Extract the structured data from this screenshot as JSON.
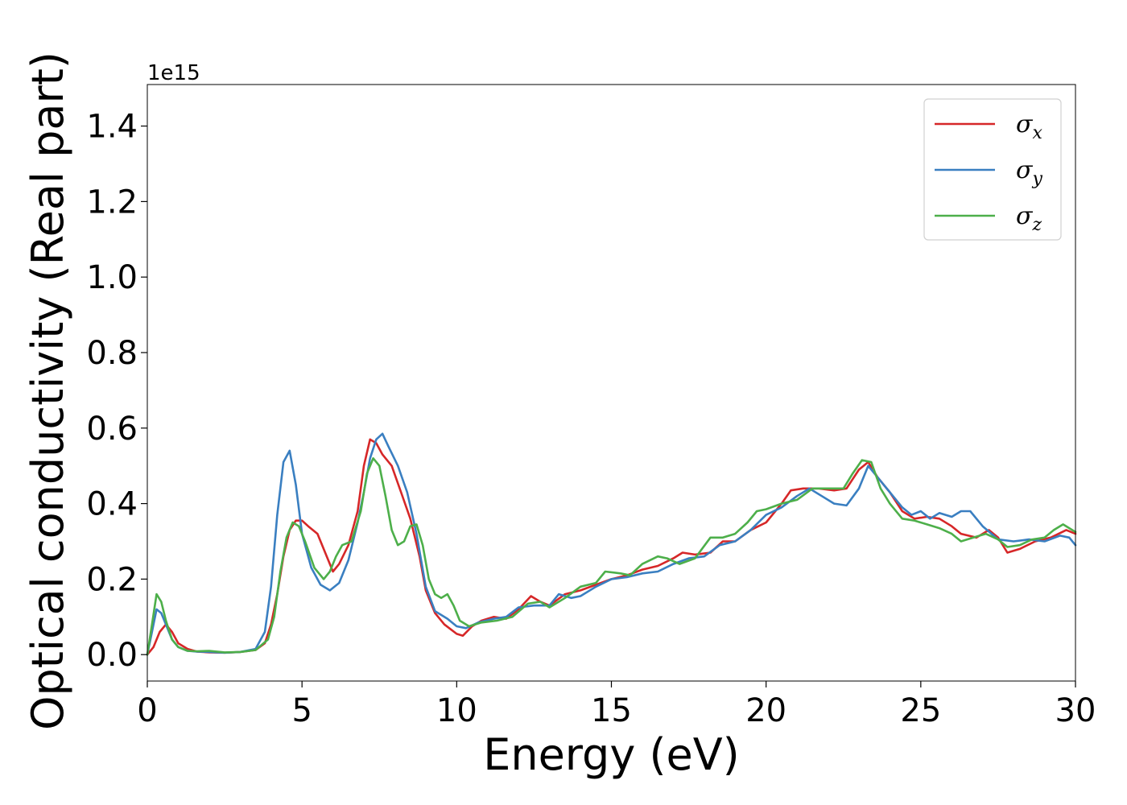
{
  "chart_data": {
    "type": "line",
    "xlabel": "Energy (eV)",
    "ylabel": "Optical conductivity (Real part)",
    "y_offset_label": "1e15",
    "xlim": [
      0,
      30
    ],
    "ylim": [
      -0.07,
      1.51
    ],
    "x_ticks": [
      0,
      5,
      10,
      15,
      20,
      25,
      30
    ],
    "x_tick_labels": [
      "0",
      "5",
      "10",
      "15",
      "20",
      "25",
      "30"
    ],
    "y_ticks": [
      0.0,
      0.2,
      0.4,
      0.6,
      0.8,
      1.0,
      1.2,
      1.4
    ],
    "y_tick_labels": [
      "0.0",
      "0.2",
      "0.4",
      "0.6",
      "0.8",
      "1.0",
      "1.2",
      "1.4"
    ],
    "grid": false,
    "legend_position": "top-right",
    "series": [
      {
        "name": "σx",
        "sub": "x",
        "color": "#d62728",
        "points": [
          [
            0,
            0.0
          ],
          [
            0.2,
            0.02
          ],
          [
            0.4,
            0.06
          ],
          [
            0.6,
            0.08
          ],
          [
            0.8,
            0.06
          ],
          [
            1.0,
            0.03
          ],
          [
            1.3,
            0.015
          ],
          [
            1.6,
            0.008
          ],
          [
            2.0,
            0.006
          ],
          [
            2.5,
            0.005
          ],
          [
            3.0,
            0.007
          ],
          [
            3.5,
            0.012
          ],
          [
            3.8,
            0.03
          ],
          [
            4.0,
            0.08
          ],
          [
            4.2,
            0.16
          ],
          [
            4.4,
            0.26
          ],
          [
            4.6,
            0.33
          ],
          [
            4.8,
            0.355
          ],
          [
            5.0,
            0.355
          ],
          [
            5.2,
            0.34
          ],
          [
            5.5,
            0.32
          ],
          [
            5.8,
            0.26
          ],
          [
            6.0,
            0.22
          ],
          [
            6.2,
            0.24
          ],
          [
            6.5,
            0.29
          ],
          [
            6.8,
            0.38
          ],
          [
            7.0,
            0.5
          ],
          [
            7.2,
            0.57
          ],
          [
            7.4,
            0.56
          ],
          [
            7.6,
            0.53
          ],
          [
            7.9,
            0.5
          ],
          [
            8.2,
            0.43
          ],
          [
            8.5,
            0.36
          ],
          [
            8.8,
            0.26
          ],
          [
            9.0,
            0.17
          ],
          [
            9.3,
            0.11
          ],
          [
            9.6,
            0.08
          ],
          [
            10.0,
            0.055
          ],
          [
            10.2,
            0.05
          ],
          [
            10.5,
            0.075
          ],
          [
            10.8,
            0.09
          ],
          [
            11.2,
            0.1
          ],
          [
            11.6,
            0.095
          ],
          [
            12.0,
            0.12
          ],
          [
            12.4,
            0.155
          ],
          [
            12.7,
            0.14
          ],
          [
            13.0,
            0.13
          ],
          [
            13.5,
            0.16
          ],
          [
            14.0,
            0.17
          ],
          [
            14.5,
            0.185
          ],
          [
            15.0,
            0.2
          ],
          [
            15.5,
            0.21
          ],
          [
            16.0,
            0.225
          ],
          [
            16.5,
            0.235
          ],
          [
            17.0,
            0.255
          ],
          [
            17.3,
            0.27
          ],
          [
            17.7,
            0.265
          ],
          [
            18.2,
            0.27
          ],
          [
            18.6,
            0.3
          ],
          [
            19.0,
            0.3
          ],
          [
            19.5,
            0.33
          ],
          [
            20.0,
            0.35
          ],
          [
            20.5,
            0.4
          ],
          [
            20.8,
            0.435
          ],
          [
            21.2,
            0.44
          ],
          [
            21.7,
            0.44
          ],
          [
            22.2,
            0.435
          ],
          [
            22.6,
            0.44
          ],
          [
            23.0,
            0.49
          ],
          [
            23.3,
            0.51
          ],
          [
            23.6,
            0.47
          ],
          [
            24.0,
            0.43
          ],
          [
            24.4,
            0.38
          ],
          [
            24.8,
            0.36
          ],
          [
            25.2,
            0.365
          ],
          [
            25.6,
            0.36
          ],
          [
            26.0,
            0.34
          ],
          [
            26.3,
            0.32
          ],
          [
            26.8,
            0.31
          ],
          [
            27.2,
            0.33
          ],
          [
            27.5,
            0.31
          ],
          [
            27.8,
            0.27
          ],
          [
            28.2,
            0.28
          ],
          [
            28.7,
            0.3
          ],
          [
            29.2,
            0.31
          ],
          [
            29.7,
            0.33
          ],
          [
            30,
            0.32
          ]
        ]
      },
      {
        "name": "σy",
        "sub": "y",
        "color": "#3a7fc1",
        "points": [
          [
            0,
            0.0
          ],
          [
            0.15,
            0.06
          ],
          [
            0.3,
            0.12
          ],
          [
            0.45,
            0.11
          ],
          [
            0.6,
            0.08
          ],
          [
            0.8,
            0.04
          ],
          [
            1.0,
            0.02
          ],
          [
            1.3,
            0.01
          ],
          [
            1.6,
            0.008
          ],
          [
            2.0,
            0.007
          ],
          [
            2.5,
            0.005
          ],
          [
            3.0,
            0.007
          ],
          [
            3.5,
            0.015
          ],
          [
            3.8,
            0.06
          ],
          [
            4.0,
            0.18
          ],
          [
            4.2,
            0.37
          ],
          [
            4.4,
            0.51
          ],
          [
            4.6,
            0.54
          ],
          [
            4.8,
            0.45
          ],
          [
            5.0,
            0.32
          ],
          [
            5.3,
            0.23
          ],
          [
            5.6,
            0.185
          ],
          [
            5.9,
            0.17
          ],
          [
            6.2,
            0.19
          ],
          [
            6.5,
            0.25
          ],
          [
            6.8,
            0.35
          ],
          [
            7.0,
            0.43
          ],
          [
            7.2,
            0.52
          ],
          [
            7.4,
            0.57
          ],
          [
            7.6,
            0.585
          ],
          [
            7.8,
            0.55
          ],
          [
            8.1,
            0.5
          ],
          [
            8.4,
            0.43
          ],
          [
            8.7,
            0.32
          ],
          [
            9.0,
            0.18
          ],
          [
            9.3,
            0.115
          ],
          [
            9.7,
            0.095
          ],
          [
            10.0,
            0.075
          ],
          [
            10.3,
            0.07
          ],
          [
            10.7,
            0.085
          ],
          [
            11.2,
            0.095
          ],
          [
            11.6,
            0.1
          ],
          [
            12.0,
            0.125
          ],
          [
            12.5,
            0.13
          ],
          [
            13.0,
            0.13
          ],
          [
            13.3,
            0.16
          ],
          [
            13.7,
            0.15
          ],
          [
            14.0,
            0.155
          ],
          [
            14.5,
            0.18
          ],
          [
            15.0,
            0.2
          ],
          [
            15.5,
            0.205
          ],
          [
            16.0,
            0.215
          ],
          [
            16.5,
            0.22
          ],
          [
            17.0,
            0.24
          ],
          [
            17.5,
            0.255
          ],
          [
            18.0,
            0.26
          ],
          [
            18.5,
            0.29
          ],
          [
            19.0,
            0.3
          ],
          [
            19.5,
            0.33
          ],
          [
            20.0,
            0.37
          ],
          [
            20.5,
            0.39
          ],
          [
            21.0,
            0.42
          ],
          [
            21.4,
            0.44
          ],
          [
            21.8,
            0.42
          ],
          [
            22.2,
            0.4
          ],
          [
            22.6,
            0.395
          ],
          [
            23.0,
            0.44
          ],
          [
            23.3,
            0.5
          ],
          [
            23.6,
            0.47
          ],
          [
            24.0,
            0.43
          ],
          [
            24.4,
            0.39
          ],
          [
            24.7,
            0.37
          ],
          [
            25.0,
            0.38
          ],
          [
            25.3,
            0.36
          ],
          [
            25.6,
            0.375
          ],
          [
            26.0,
            0.365
          ],
          [
            26.3,
            0.38
          ],
          [
            26.6,
            0.38
          ],
          [
            27.0,
            0.34
          ],
          [
            27.5,
            0.305
          ],
          [
            28.0,
            0.3
          ],
          [
            28.5,
            0.305
          ],
          [
            29.0,
            0.3
          ],
          [
            29.5,
            0.315
          ],
          [
            29.8,
            0.31
          ],
          [
            30,
            0.29
          ]
        ]
      },
      {
        "name": "σz",
        "sub": "z",
        "color": "#4daf4a",
        "points": [
          [
            0,
            0.0
          ],
          [
            0.15,
            0.08
          ],
          [
            0.3,
            0.16
          ],
          [
            0.45,
            0.14
          ],
          [
            0.6,
            0.09
          ],
          [
            0.8,
            0.04
          ],
          [
            1.0,
            0.02
          ],
          [
            1.3,
            0.01
          ],
          [
            1.6,
            0.009
          ],
          [
            2.0,
            0.01
          ],
          [
            2.5,
            0.006
          ],
          [
            3.0,
            0.007
          ],
          [
            3.5,
            0.012
          ],
          [
            3.9,
            0.04
          ],
          [
            4.1,
            0.1
          ],
          [
            4.3,
            0.22
          ],
          [
            4.5,
            0.31
          ],
          [
            4.7,
            0.35
          ],
          [
            4.9,
            0.34
          ],
          [
            5.1,
            0.3
          ],
          [
            5.4,
            0.23
          ],
          [
            5.7,
            0.2
          ],
          [
            5.9,
            0.22
          ],
          [
            6.1,
            0.26
          ],
          [
            6.3,
            0.29
          ],
          [
            6.6,
            0.3
          ],
          [
            6.9,
            0.38
          ],
          [
            7.1,
            0.48
          ],
          [
            7.3,
            0.52
          ],
          [
            7.5,
            0.5
          ],
          [
            7.7,
            0.42
          ],
          [
            7.9,
            0.33
          ],
          [
            8.1,
            0.29
          ],
          [
            8.3,
            0.3
          ],
          [
            8.5,
            0.34
          ],
          [
            8.7,
            0.345
          ],
          [
            8.9,
            0.29
          ],
          [
            9.1,
            0.2
          ],
          [
            9.3,
            0.16
          ],
          [
            9.5,
            0.15
          ],
          [
            9.7,
            0.16
          ],
          [
            9.9,
            0.13
          ],
          [
            10.1,
            0.09
          ],
          [
            10.4,
            0.075
          ],
          [
            10.8,
            0.085
          ],
          [
            11.3,
            0.09
          ],
          [
            11.8,
            0.1
          ],
          [
            12.3,
            0.135
          ],
          [
            12.7,
            0.14
          ],
          [
            13.0,
            0.125
          ],
          [
            13.5,
            0.15
          ],
          [
            14.0,
            0.18
          ],
          [
            14.5,
            0.19
          ],
          [
            14.8,
            0.22
          ],
          [
            15.3,
            0.215
          ],
          [
            15.6,
            0.21
          ],
          [
            16.0,
            0.24
          ],
          [
            16.5,
            0.26
          ],
          [
            16.8,
            0.255
          ],
          [
            17.2,
            0.24
          ],
          [
            17.7,
            0.255
          ],
          [
            18.2,
            0.31
          ],
          [
            18.6,
            0.31
          ],
          [
            19.0,
            0.32
          ],
          [
            19.4,
            0.35
          ],
          [
            19.7,
            0.38
          ],
          [
            20.0,
            0.385
          ],
          [
            20.5,
            0.4
          ],
          [
            21.0,
            0.41
          ],
          [
            21.5,
            0.44
          ],
          [
            22.0,
            0.44
          ],
          [
            22.5,
            0.44
          ],
          [
            22.8,
            0.48
          ],
          [
            23.1,
            0.515
          ],
          [
            23.4,
            0.51
          ],
          [
            23.7,
            0.44
          ],
          [
            24.0,
            0.4
          ],
          [
            24.4,
            0.36
          ],
          [
            24.8,
            0.355
          ],
          [
            25.2,
            0.345
          ],
          [
            25.6,
            0.335
          ],
          [
            26.0,
            0.32
          ],
          [
            26.3,
            0.3
          ],
          [
            26.7,
            0.31
          ],
          [
            27.1,
            0.32
          ],
          [
            27.5,
            0.305
          ],
          [
            27.8,
            0.285
          ],
          [
            28.2,
            0.29
          ],
          [
            28.6,
            0.305
          ],
          [
            29.0,
            0.31
          ],
          [
            29.3,
            0.33
          ],
          [
            29.6,
            0.345
          ],
          [
            29.8,
            0.335
          ],
          [
            30,
            0.325
          ]
        ]
      }
    ]
  }
}
